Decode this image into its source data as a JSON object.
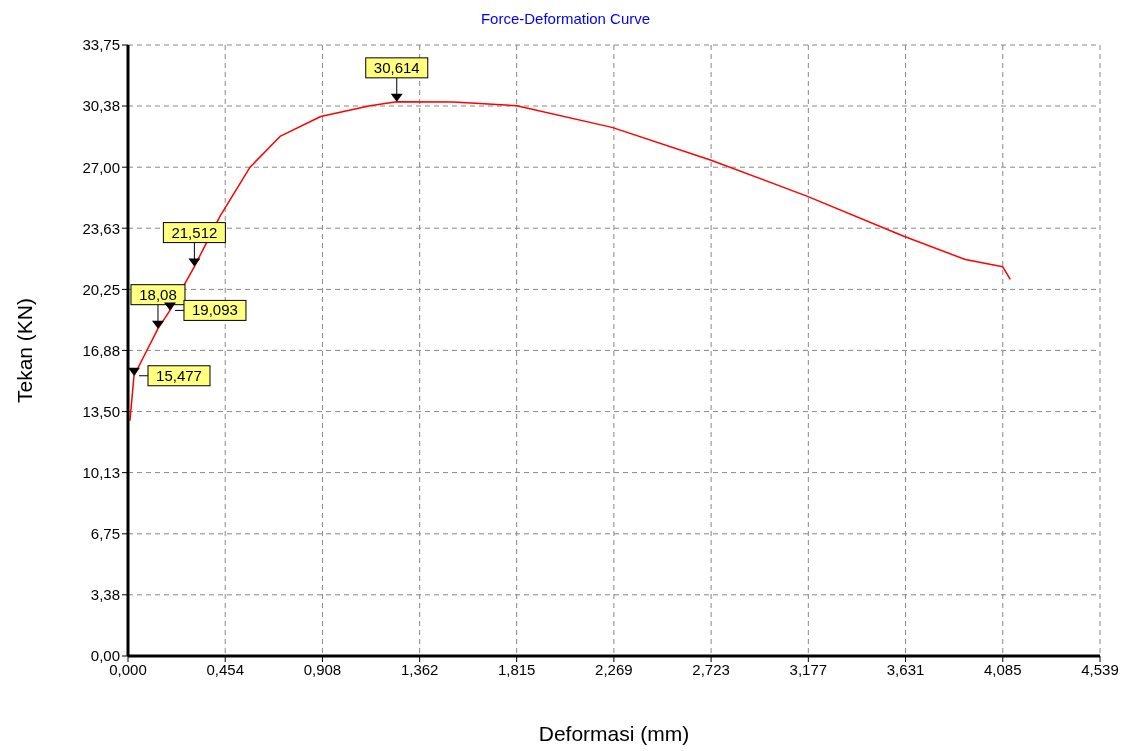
{
  "chart_data": {
    "type": "line",
    "title": "Force-Deformation Curve",
    "xlabel": "Deformasi (mm)",
    "ylabel": "Tekan (KN)",
    "x": [
      0.009,
      0.028,
      0.14,
      0.196,
      0.31,
      0.43,
      0.57,
      0.71,
      0.9,
      1.13,
      1.255,
      1.52,
      1.815,
      2.26,
      2.72,
      3.17,
      3.62,
      3.91,
      4.085,
      4.12
    ],
    "series": [
      {
        "color": "#ff0000",
        "values": [
          13.0,
          15.48,
          18.08,
          19.09,
          21.51,
          24.3,
          27.0,
          28.7,
          29.8,
          30.4,
          30.61,
          30.6,
          30.4,
          29.2,
          27.4,
          25.4,
          23.2,
          21.9,
          21.5,
          20.8
        ]
      }
    ],
    "xlim": [
      0,
      4.539
    ],
    "xticks": [
      {
        "value": 0,
        "label": "0,000"
      },
      {
        "value": 0.454,
        "label": "0,454"
      },
      {
        "value": 0.908,
        "label": "0,908"
      },
      {
        "value": 1.362,
        "label": "1,362"
      },
      {
        "value": 1.815,
        "label": "1,815"
      },
      {
        "value": 2.269,
        "label": "2,269"
      },
      {
        "value": 2.723,
        "label": "2,723"
      },
      {
        "value": 3.177,
        "label": "3,177"
      },
      {
        "value": 3.631,
        "label": "3,631"
      },
      {
        "value": 4.085,
        "label": "4,085"
      },
      {
        "value": 4.539,
        "label": "4,539"
      }
    ],
    "ylim": [
      0,
      33.75
    ],
    "yticks": [
      {
        "value": 0,
        "label": "0,00"
      },
      {
        "value": 3.38,
        "label": "3,38"
      },
      {
        "value": 6.75,
        "label": "6,75"
      },
      {
        "value": 10.13,
        "label": "10,13"
      },
      {
        "value": 13.5,
        "label": "13,50"
      },
      {
        "value": 16.88,
        "label": "16,88"
      },
      {
        "value": 20.25,
        "label": "20,25"
      },
      {
        "value": 23.63,
        "label": "23,63"
      },
      {
        "value": 27,
        "label": "27,00"
      },
      {
        "value": 30.38,
        "label": "30,38"
      },
      {
        "value": 33.75,
        "label": "33,75"
      }
    ],
    "grid": true,
    "marker": "none",
    "line_style": "solid",
    "annotations": [
      {
        "text": "15,477",
        "x": 0.028,
        "y": 15.48
      },
      {
        "text": "18,08",
        "x": 0.14,
        "y": 18.08
      },
      {
        "text": "19,093",
        "x": 0.196,
        "y": 19.09
      },
      {
        "text": "21,512",
        "x": 0.31,
        "y": 21.51
      },
      {
        "text": "30,614",
        "x": 1.255,
        "y": 30.61
      }
    ]
  }
}
